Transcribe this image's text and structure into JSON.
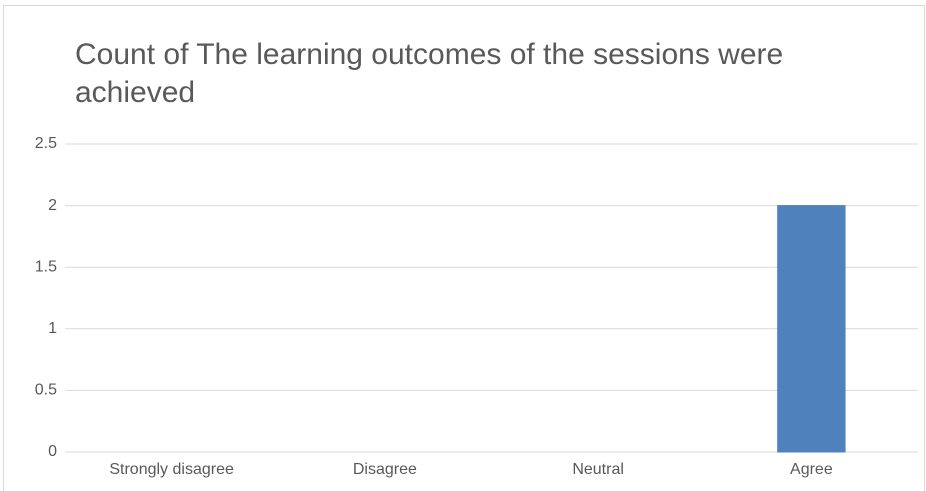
{
  "chart_data": {
    "type": "bar",
    "title": "Count of The learning outcomes of the sessions were achieved",
    "categories": [
      "Strongly disagree",
      "Disagree",
      "Neutral",
      "Agree"
    ],
    "values": [
      0,
      0,
      0,
      2
    ],
    "color": "#4f81bd",
    "ylim": [
      0,
      2.5
    ],
    "yticks": [
      0,
      0.5,
      1,
      1.5,
      2,
      2.5
    ],
    "grid": true
  }
}
